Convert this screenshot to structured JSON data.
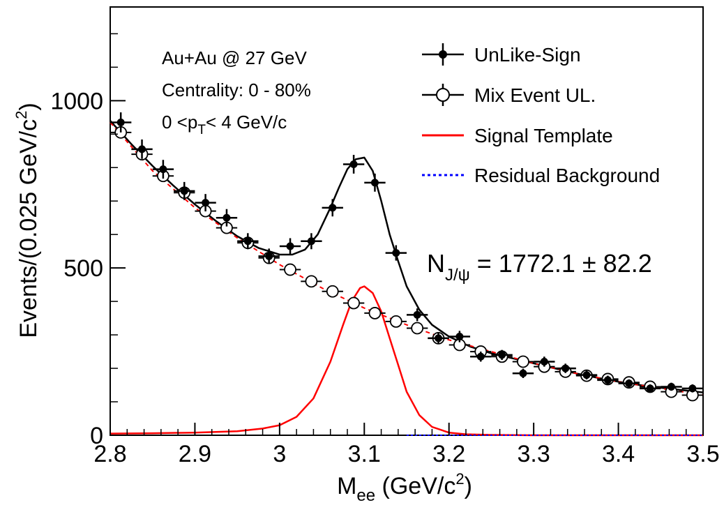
{
  "chart_data": {
    "type": "scatter",
    "xlim": [
      2.8,
      3.5
    ],
    "ylim": [
      0,
      1280
    ],
    "grid": false,
    "xlabel": {
      "main": "M",
      "sub": "ee",
      "rest": " (GeV/c",
      "sup": "2",
      "end": ")"
    },
    "ylabel": {
      "main": "Events/(0.025 GeV/c",
      "sup": "2",
      "end": ")"
    },
    "x_ticks": [
      2.8,
      2.9,
      3.0,
      3.1,
      3.2,
      3.3,
      3.4,
      3.5
    ],
    "x_tick_labels": [
      "2.8",
      "2.9",
      "3",
      "3.1",
      "3.2",
      "3.3",
      "3.4",
      "3.5"
    ],
    "y_ticks": [
      0,
      500,
      1000
    ],
    "y_tick_labels": [
      "0",
      "500",
      "1000"
    ],
    "annotations": {
      "line1": "Au+Au @ 27 GeV",
      "line2": "Centrality: 0 - 80%",
      "line3_a": "0 <p",
      "line3_sub": "T",
      "line3_b": "< 4 GeV/c",
      "yield_main": "N",
      "yield_sub": "J/ψ",
      "yield_value": " = 1772.1 ± 82.2"
    },
    "legend": {
      "placement": "top-right",
      "entries": [
        {
          "label": "UnLike-Sign",
          "style": "filled-marker",
          "color": "#000000"
        },
        {
          "label": "Mix Event UL.",
          "style": "open-marker",
          "color": "#000000"
        },
        {
          "label": "Signal Template",
          "style": "line",
          "color": "#ff0000"
        },
        {
          "label": "Residual Background",
          "style": "dashed-line",
          "color": "#0000ff"
        }
      ]
    },
    "series": [
      {
        "name": "UnLike-Sign",
        "marker": "filled",
        "color": "#000000",
        "x": [
          2.8125,
          2.8375,
          2.8625,
          2.8875,
          2.9125,
          2.9375,
          2.9625,
          2.9875,
          3.0125,
          3.0375,
          3.0625,
          3.0875,
          3.1125,
          3.1375,
          3.1625,
          3.1875,
          3.2125,
          3.2375,
          3.2625,
          3.2875,
          3.3125,
          3.3375,
          3.3625,
          3.3875,
          3.4125,
          3.4375,
          3.4625,
          3.4875
        ],
        "y": [
          935,
          855,
          795,
          730,
          695,
          650,
          580,
          535,
          565,
          580,
          680,
          810,
          755,
          545,
          360,
          290,
          295,
          235,
          240,
          185,
          220,
          200,
          180,
          165,
          155,
          140,
          145,
          140
        ],
        "yerr": [
          30,
          29,
          28,
          27,
          26,
          26,
          24,
          23,
          24,
          24,
          26,
          28,
          27,
          23,
          19,
          17,
          17,
          15,
          15,
          14,
          15,
          14,
          13,
          13,
          12,
          12,
          12,
          12
        ]
      },
      {
        "name": "Mix Event UL.",
        "marker": "open",
        "color": "#000000",
        "x": [
          2.8125,
          2.8375,
          2.8625,
          2.8875,
          2.9125,
          2.9375,
          2.9625,
          2.9875,
          3.0125,
          3.0375,
          3.0625,
          3.0875,
          3.1125,
          3.1375,
          3.1625,
          3.1875,
          3.2125,
          3.2375,
          3.2625,
          3.2875,
          3.3125,
          3.3375,
          3.3625,
          3.3875,
          3.4125,
          3.4375,
          3.4625,
          3.4875
        ],
        "y": [
          905,
          840,
          775,
          725,
          670,
          620,
          575,
          530,
          495,
          460,
          430,
          395,
          365,
          340,
          320,
          290,
          270,
          250,
          235,
          220,
          205,
          190,
          178,
          168,
          158,
          145,
          130,
          120
        ]
      }
    ],
    "curves": [
      {
        "name": "Total Fit",
        "color": "#000000",
        "style": "solid",
        "x": [
          2.8,
          2.825,
          2.85,
          2.875,
          2.9,
          2.925,
          2.95,
          2.975,
          3.0,
          3.015,
          3.03,
          3.045,
          3.06,
          3.07,
          3.08,
          3.09,
          3.1,
          3.11,
          3.12,
          3.13,
          3.14,
          3.15,
          3.165,
          3.18,
          3.2,
          3.225,
          3.25,
          3.275,
          3.3,
          3.325,
          3.35,
          3.375,
          3.4,
          3.425,
          3.45,
          3.475,
          3.5
        ],
        "y": [
          940,
          870,
          805,
          745,
          690,
          640,
          595,
          560,
          540,
          540,
          555,
          600,
          680,
          740,
          795,
          825,
          830,
          790,
          700,
          600,
          520,
          445,
          375,
          330,
          295,
          265,
          245,
          230,
          215,
          200,
          185,
          172,
          160,
          150,
          142,
          135,
          128
        ]
      },
      {
        "name": "Background Fit",
        "color": "#ff0000",
        "style": "dashed",
        "x": [
          2.8,
          2.85,
          2.9,
          2.95,
          3.0,
          3.05,
          3.1,
          3.15,
          3.2,
          3.25,
          3.3,
          3.35,
          3.4,
          3.45,
          3.5
        ],
        "y": [
          935,
          790,
          680,
          590,
          510,
          440,
          380,
          330,
          285,
          250,
          215,
          185,
          160,
          140,
          120
        ]
      },
      {
        "name": "Signal Template",
        "color": "#ff0000",
        "style": "solid",
        "x": [
          2.8,
          2.85,
          2.9,
          2.95,
          2.98,
          3.0,
          3.02,
          3.04,
          3.06,
          3.075,
          3.085,
          3.095,
          3.1,
          3.11,
          3.12,
          3.13,
          3.14,
          3.15,
          3.165,
          3.18,
          3.2,
          3.22,
          3.25,
          3.3,
          3.35,
          3.4,
          3.45,
          3.5
        ],
        "y": [
          5,
          6,
          8,
          12,
          20,
          30,
          55,
          110,
          220,
          330,
          400,
          440,
          445,
          425,
          370,
          290,
          210,
          130,
          60,
          25,
          8,
          3,
          1,
          0,
          0,
          0,
          0,
          0
        ]
      },
      {
        "name": "Residual Background",
        "color": "#0000ff",
        "style": "dotted",
        "x": [
          3.15,
          3.5
        ],
        "y": [
          0,
          0
        ]
      }
    ]
  }
}
